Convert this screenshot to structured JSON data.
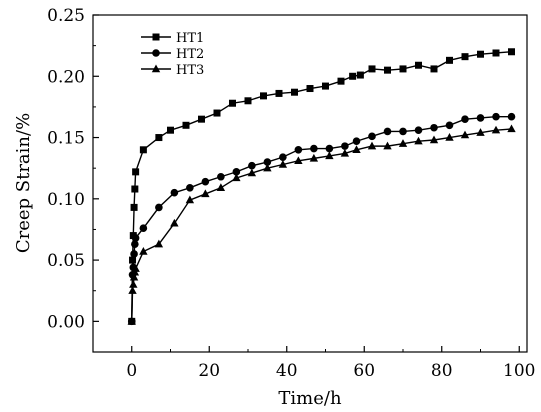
{
  "chart_data": {
    "type": "line",
    "xlabel": "Time/h",
    "ylabel": "Creep Strain/%",
    "xlim": [
      -10,
      102
    ],
    "ylim": [
      -0.025,
      0.25
    ],
    "xticks": [
      0,
      20,
      40,
      60,
      80,
      100
    ],
    "xtick_labels": [
      "0",
      "20",
      "40",
      "60",
      "80",
      "100"
    ],
    "yticks": [
      0.0,
      0.05,
      0.1,
      0.15,
      0.2,
      0.25
    ],
    "ytick_labels": [
      "0.00",
      "0.05",
      "0.10",
      "0.15",
      "0.20",
      "0.25"
    ],
    "grid": false,
    "legend_position": "top-left",
    "series": [
      {
        "name": "HT1",
        "marker": "square",
        "color": "#000000",
        "x": [
          0,
          0.2,
          0.4,
          0.6,
          0.8,
          1,
          3,
          7,
          10,
          14,
          18,
          22,
          26,
          30,
          34,
          38,
          42,
          46,
          50,
          54,
          57,
          59,
          62,
          66,
          70,
          74,
          78,
          82,
          86,
          90,
          94,
          98
        ],
        "y": [
          0.0,
          0.05,
          0.07,
          0.093,
          0.108,
          0.122,
          0.14,
          0.15,
          0.156,
          0.16,
          0.165,
          0.17,
          0.178,
          0.18,
          0.184,
          0.186,
          0.187,
          0.19,
          0.192,
          0.196,
          0.2,
          0.201,
          0.206,
          0.205,
          0.206,
          0.209,
          0.206,
          0.213,
          0.216,
          0.218,
          0.219,
          0.22
        ]
      },
      {
        "name": "HT2",
        "marker": "circle",
        "color": "#000000",
        "x": [
          0,
          0.2,
          0.4,
          0.6,
          0.8,
          1,
          3,
          7,
          11,
          15,
          19,
          23,
          27,
          31,
          35,
          39,
          43,
          47,
          51,
          55,
          58,
          62,
          66,
          70,
          74,
          78,
          82,
          86,
          90,
          94,
          98
        ],
        "y": [
          0.0,
          0.038,
          0.044,
          0.055,
          0.063,
          0.068,
          0.076,
          0.093,
          0.105,
          0.109,
          0.114,
          0.118,
          0.122,
          0.127,
          0.13,
          0.134,
          0.14,
          0.141,
          0.141,
          0.143,
          0.147,
          0.151,
          0.155,
          0.155,
          0.156,
          0.158,
          0.16,
          0.165,
          0.166,
          0.167,
          0.167
        ]
      },
      {
        "name": "HT3",
        "marker": "triangle",
        "color": "#000000",
        "x": [
          0,
          0.2,
          0.4,
          0.6,
          0.8,
          1,
          3,
          7,
          11,
          15,
          19,
          23,
          27,
          31,
          35,
          39,
          43,
          47,
          51,
          55,
          58,
          62,
          66,
          70,
          74,
          78,
          82,
          86,
          90,
          94,
          98
        ],
        "y": [
          0.0,
          0.025,
          0.03,
          0.036,
          0.04,
          0.043,
          0.057,
          0.063,
          0.08,
          0.099,
          0.104,
          0.109,
          0.117,
          0.121,
          0.125,
          0.128,
          0.131,
          0.133,
          0.135,
          0.137,
          0.14,
          0.143,
          0.143,
          0.145,
          0.147,
          0.148,
          0.15,
          0.152,
          0.154,
          0.156,
          0.157
        ]
      }
    ]
  }
}
